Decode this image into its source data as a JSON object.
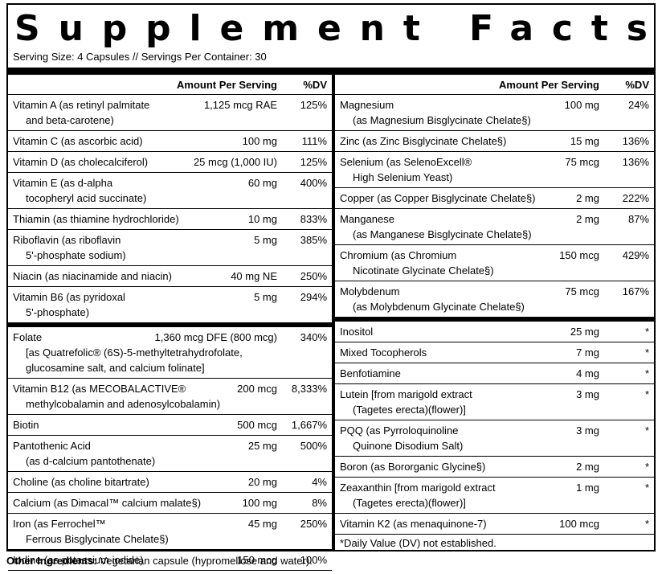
{
  "title": "Supplement Facts",
  "serving": "Serving Size: 4 Capsules // Servings Per Container: 30",
  "left": {
    "headers": [
      "Amount Per Serving",
      "%DV"
    ],
    "groups": [
      [
        {
          "name": [
            "Vitamin A (as retinyl palmitate",
            "and beta-carotene)"
          ],
          "amount": "1,125 mcg RAE",
          "dv": "125%"
        },
        {
          "name": [
            "Vitamin C (as ascorbic acid)"
          ],
          "amount": "100 mg",
          "dv": "111%"
        },
        {
          "name": [
            "Vitamin D (as cholecalciferol)"
          ],
          "amount": "25 mcg (1,000 IU)",
          "dv": "125%"
        },
        {
          "name": [
            "Vitamin E (as d-alpha",
            "tocopheryl acid succinate)"
          ],
          "amount": "60 mg",
          "dv": "400%"
        },
        {
          "name": [
            "Thiamin (as thiamine hydrochloride)"
          ],
          "amount": "10 mg",
          "dv": "833%"
        },
        {
          "name": [
            "Riboflavin (as riboflavin",
            "5'-phosphate sodium)"
          ],
          "amount": "5 mg",
          "dv": "385%"
        },
        {
          "name": [
            "Niacin (as niacinamide and niacin)"
          ],
          "amount": "40 mg NE",
          "dv": "250%"
        },
        {
          "name": [
            "Vitamin B6 (as pyridoxal",
            "5'-phosphate)"
          ],
          "amount": "5 mg",
          "dv": "294%"
        }
      ],
      [
        {
          "name": [
            "Folate",
            "[as Quatrefolic® (6S)-5-methyltetrahydrofolate,",
            "glucosamine salt, and calcium folinate]"
          ],
          "amount": "1,360 mcg DFE (800 mcg)",
          "dv": "340%"
        },
        {
          "name": [
            "Vitamin B12 (as MECOBALACTIVE®",
            "methylcobalamin and adenosylcobalamin)"
          ],
          "amount": "200 mcg",
          "dv": "8,333%"
        },
        {
          "name": [
            "Biotin"
          ],
          "amount": "500 mcg",
          "dv": "1,667%"
        },
        {
          "name": [
            "Pantothenic Acid",
            "(as d-calcium pantothenate)"
          ],
          "amount": "25 mg",
          "dv": "500%"
        },
        {
          "name": [
            "Choline (as choline bitartrate)"
          ],
          "amount": "20 mg",
          "dv": "4%"
        },
        {
          "name": [
            "Calcium (as Dimacal™ calcium malate§)"
          ],
          "amount": "100 mg",
          "dv": "8%"
        },
        {
          "name": [
            "Iron (as Ferrochel™",
            "Ferrous Bisglycinate Chelate§)"
          ],
          "amount": "45 mg",
          "dv": "250%"
        },
        {
          "name": [
            "Iodine (as potassium iodide)"
          ],
          "amount": "150 mcg",
          "dv": "100%"
        }
      ]
    ]
  },
  "right": {
    "headers": [
      "Amount Per Serving",
      "%DV"
    ],
    "groups": [
      [
        {
          "name": [
            "Magnesium",
            "(as Magnesium Bisglycinate Chelate§)"
          ],
          "amount": "100 mg",
          "dv": "24%"
        },
        {
          "name": [
            "Zinc (as Zinc Bisglycinate Chelate§)"
          ],
          "amount": "15 mg",
          "dv": "136%"
        },
        {
          "name": [
            "Selenium (as SelenoExcell®",
            "High Selenium Yeast)"
          ],
          "amount": "75 mcg",
          "dv": "136%"
        },
        {
          "name": [
            "Copper (as Copper Bisglycinate Chelate§)"
          ],
          "amount": "2 mg",
          "dv": "222%"
        },
        {
          "name": [
            "Manganese",
            "(as Manganese Bisglycinate Chelate§)"
          ],
          "amount": "2 mg",
          "dv": "87%"
        },
        {
          "name": [
            "Chromium (as Chromium",
            "Nicotinate Glycinate Chelate§)"
          ],
          "amount": "150 mcg",
          "dv": "429%"
        },
        {
          "name": [
            "Molybdenum",
            "(as Molybdenum Glycinate Chelate§)"
          ],
          "amount": "75 mcg",
          "dv": "167%"
        }
      ],
      [
        {
          "name": [
            "Inositol"
          ],
          "amount": "25 mg",
          "dv": "*"
        },
        {
          "name": [
            "Mixed Tocopherols"
          ],
          "amount": "7 mg",
          "dv": "*"
        },
        {
          "name": [
            "Benfotiamine"
          ],
          "amount": "4 mg",
          "dv": "*"
        },
        {
          "name": [
            "Lutein [from marigold extract",
            "(Tagetes erecta)(flower)]"
          ],
          "amount": "3 mg",
          "dv": "*"
        },
        {
          "name": [
            "PQQ (as Pyrroloquinoline",
            "Quinone Disodium Salt)"
          ],
          "amount": "3 mg",
          "dv": "*"
        },
        {
          "name": [
            "Boron (as Bororganic Glycine§)"
          ],
          "amount": "2 mg",
          "dv": "*"
        },
        {
          "name": [
            "Zeaxanthin [from marigold extract",
            "(Tagetes erecta)(flower)]"
          ],
          "amount": "1 mg",
          "dv": "*"
        },
        {
          "name": [
            "Vitamin K2 (as menaquinone-7)"
          ],
          "amount": "100 mcg",
          "dv": "*"
        }
      ]
    ]
  },
  "footnote": "*Daily Value (DV) not established.",
  "other_label": "Other Ingredients:",
  "other_text": "Vegetarian capsule (hypromellose and water)."
}
